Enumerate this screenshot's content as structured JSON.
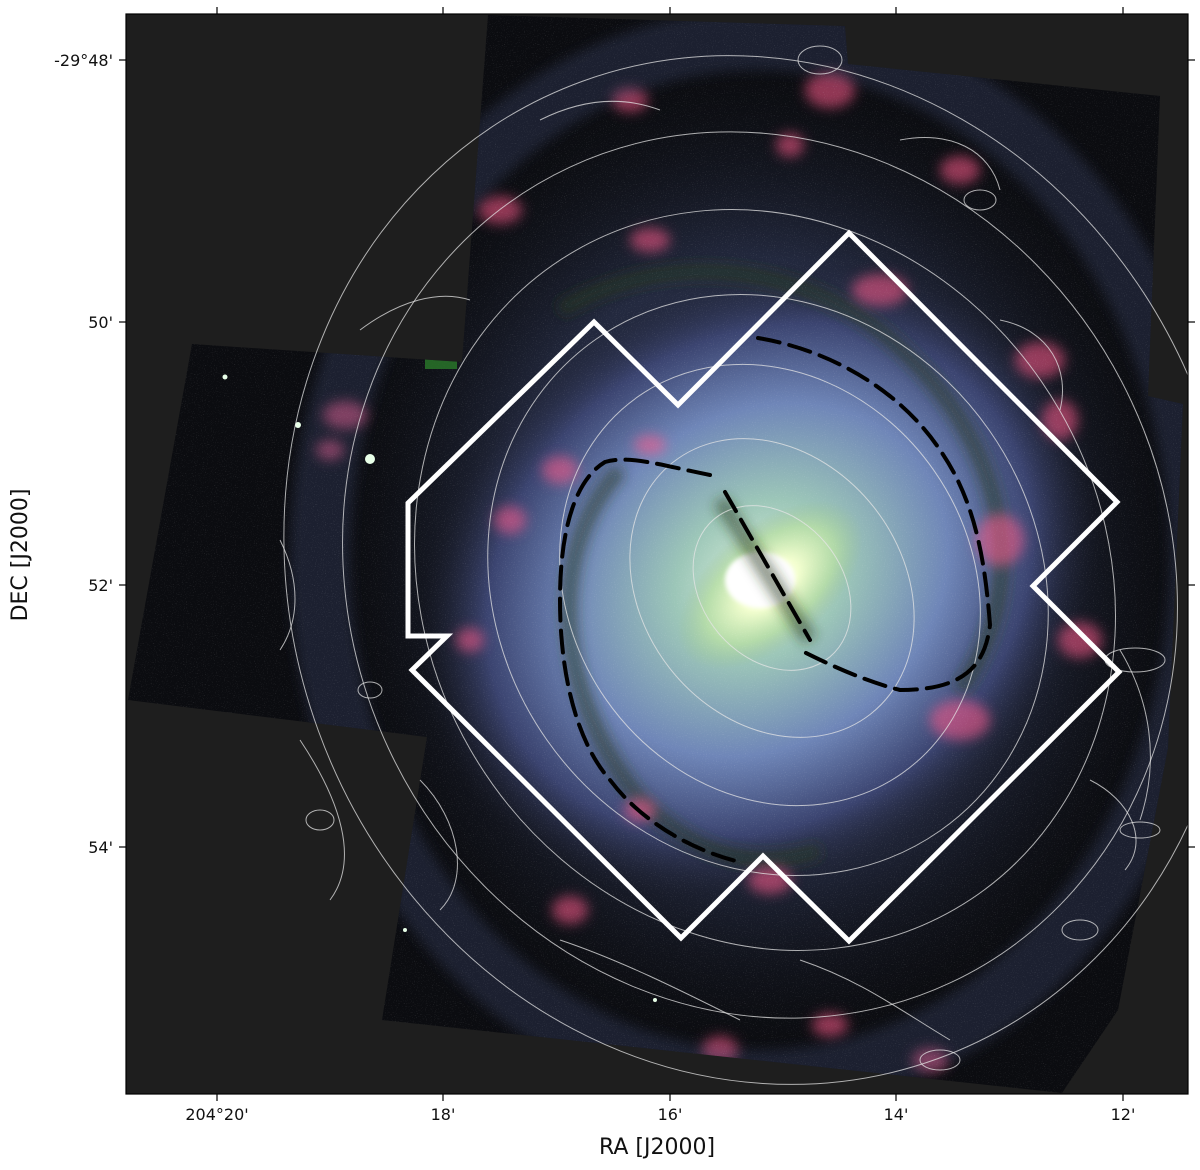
{
  "figure": {
    "axes": {
      "xlabel": "RA [J2000]",
      "ylabel": "DEC [J2000]",
      "x_ticks": [
        "204°20'",
        "18'",
        "16'",
        "14'",
        "12'"
      ],
      "y_ticks": [
        "-29°48'",
        "50'",
        "52'",
        "54'"
      ]
    },
    "colors": {
      "sky_background": "#1e1e1e",
      "contours": "#e6e6e6",
      "footprint_outline": "#ffffff",
      "bar_and_ring_markers": "#000000",
      "star_formation": "#ff5a8a",
      "disk_glow": "#8fb2e0",
      "bulge": "#f2ffd0"
    },
    "image_content": "spiral-galaxy-mosaic"
  }
}
